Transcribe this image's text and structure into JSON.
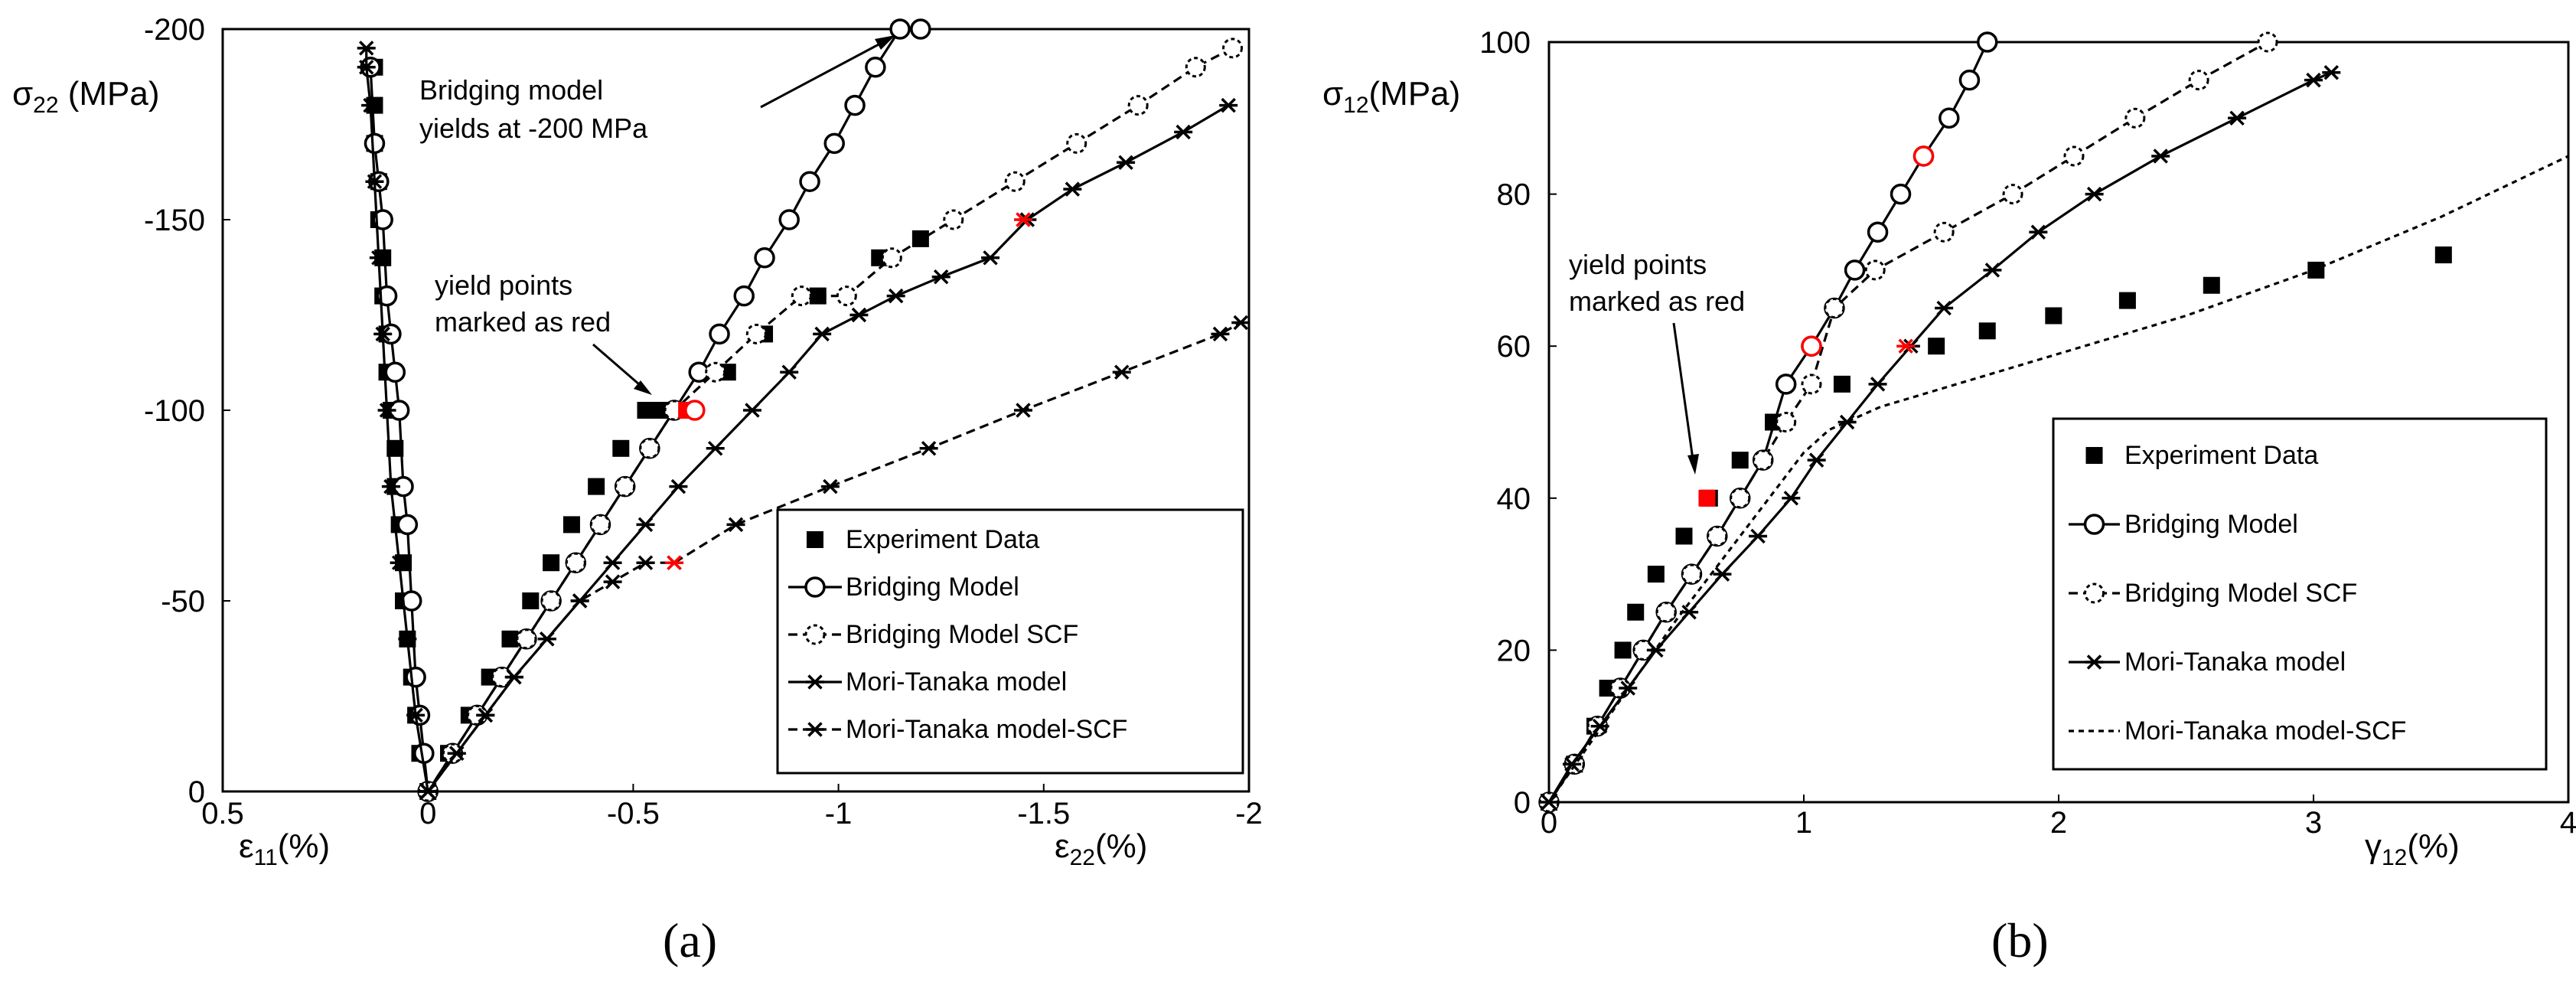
{
  "colors": {
    "ink": "#000000",
    "yield": "#ff0000",
    "background": "#ffffff"
  },
  "chart_data": [
    {
      "panel": "(a)",
      "type": "line",
      "ylabel": "σ22 (MPa)",
      "xlabel_left": "ε11(%)",
      "xlabel_right": "ε22(%)",
      "xlim": [
        0.5,
        -2
      ],
      "ylim": [
        0,
        -200
      ],
      "xticks": [
        "0.5",
        "0",
        "-0.5",
        "-1",
        "-1.5",
        "-2"
      ],
      "yticks": [
        "0",
        "-50",
        "-100",
        "-150",
        "-200"
      ],
      "annotations": [
        "Bridging model",
        "yields at -200 MPa",
        "yield points",
        "marked as red"
      ],
      "series": [
        {
          "name": "Experiment Data",
          "marker": "square",
          "line": "none",
          "x": [
            -0.05,
            -0.1,
            -0.15,
            -0.2,
            -0.25,
            -0.3,
            -0.35,
            -0.41,
            -0.47,
            -0.53,
            -0.57,
            -0.73,
            -0.82,
            -0.95,
            -1.1,
            -1.2
          ],
          "y": [
            -10,
            -20,
            -30,
            -40,
            -50,
            -60,
            -70,
            -80,
            -90,
            -100,
            -100,
            -110,
            -120,
            -130,
            -140,
            -145
          ]
        },
        {
          "name": "Experiment Data (ε11)",
          "marker": "square",
          "line": "none",
          "x": [
            0,
            0.02,
            0.03,
            0.04,
            0.05,
            0.06,
            0.06,
            0.07,
            0.08,
            0.08,
            0.09,
            0.1,
            0.1,
            0.11,
            0.11,
            0.12,
            0.12,
            0.13,
            0.13,
            0.13
          ],
          "y": [
            0,
            -10,
            -20,
            -30,
            -40,
            -50,
            -60,
            -70,
            -80,
            -90,
            -100,
            -110,
            -120,
            -130,
            -140,
            -150,
            -160,
            -170,
            -180,
            -190
          ]
        },
        {
          "name": "Bridging Model",
          "marker": "circle-open",
          "line": "solid",
          "x": [
            0,
            -0.06,
            -0.12,
            -0.18,
            -0.24,
            -0.3,
            -0.36,
            -0.42,
            -0.48,
            -0.54,
            -0.6,
            -0.66,
            -0.71,
            -0.77,
            -0.82,
            -0.88,
            -0.93,
            -0.99,
            -1.04,
            -1.09,
            -1.15,
            -1.2
          ],
          "y": [
            0,
            -10,
            -20,
            -30,
            -40,
            -50,
            -60,
            -70,
            -80,
            -90,
            -100,
            -110,
            -120,
            -130,
            -140,
            -150,
            -160,
            -170,
            -180,
            -190,
            -200,
            -200
          ]
        },
        {
          "name": "Bridging Model (ε11)",
          "marker": "circle-open",
          "line": "solid",
          "x": [
            0,
            0.01,
            0.02,
            0.03,
            0.04,
            0.05,
            0.06,
            0.07,
            0.08,
            0.09,
            0.1,
            0.11,
            0.12,
            0.13,
            0.14
          ],
          "y": [
            0,
            -10,
            -20,
            -30,
            -50,
            -70,
            -80,
            -100,
            -110,
            -120,
            -130,
            -150,
            -160,
            -170,
            -190
          ]
        },
        {
          "name": "Bridging Model SCF",
          "marker": "circle-dashed",
          "line": "dashed",
          "x": [
            0,
            -0.06,
            -0.12,
            -0.18,
            -0.24,
            -0.3,
            -0.36,
            -0.42,
            -0.48,
            -0.54,
            -0.6,
            -0.7,
            -0.8,
            -0.91,
            -1.02,
            -1.13,
            -1.28,
            -1.43,
            -1.58,
            -1.73,
            -1.87,
            -1.96
          ],
          "y": [
            0,
            -10,
            -20,
            -30,
            -40,
            -50,
            -60,
            -70,
            -80,
            -90,
            -100,
            -110,
            -120,
            -130,
            -130,
            -140,
            -150,
            -160,
            -170,
            -180,
            -190,
            -195
          ]
        },
        {
          "name": "Mori-Tanaka model",
          "marker": "star",
          "line": "solid",
          "x": [
            0,
            -0.07,
            -0.14,
            -0.21,
            -0.29,
            -0.37,
            -0.45,
            -0.53,
            -0.61,
            -0.7,
            -0.79,
            -0.88,
            -0.96,
            -1.05,
            -1.14,
            -1.25,
            -1.37,
            -1.46,
            -1.57,
            -1.7,
            -1.84,
            -1.95
          ],
          "y": [
            0,
            -10,
            -20,
            -30,
            -40,
            -50,
            -60,
            -70,
            -80,
            -90,
            -100,
            -110,
            -120,
            -125,
            -130,
            -135,
            -140,
            -150,
            -158,
            -165,
            -173,
            -180
          ]
        },
        {
          "name": "Mori-Tanaka model-SCF",
          "marker": "star",
          "line": "dashed",
          "x": [
            0,
            -0.07,
            -0.14,
            -0.21,
            -0.29,
            -0.37,
            -0.45,
            -0.53,
            -0.6,
            -0.75,
            -0.98,
            -1.22,
            -1.45,
            -1.69,
            -1.93,
            -1.98
          ],
          "y": [
            0,
            -10,
            -20,
            -30,
            -40,
            -50,
            -55,
            -60,
            -60,
            -70,
            -80,
            -90,
            -100,
            -110,
            -120,
            -123
          ]
        },
        {
          "name": "Mori-Tanaka model (ε11)",
          "marker": "star",
          "line": "solid",
          "x": [
            0,
            0.03,
            0.05,
            0.07,
            0.09,
            0.1,
            0.11,
            0.12,
            0.13,
            0.14,
            0.15,
            0.15
          ],
          "y": [
            0,
            -20,
            -40,
            -60,
            -80,
            -100,
            -120,
            -140,
            -160,
            -180,
            -190,
            -195
          ]
        }
      ],
      "yield_points": [
        {
          "x": -0.63,
          "y": -100,
          "marker": "square"
        },
        {
          "x": -0.65,
          "y": -100,
          "marker": "circle"
        },
        {
          "x": -1.45,
          "y": -150,
          "marker": "star"
        },
        {
          "x": -0.6,
          "y": -60,
          "marker": "star"
        }
      ],
      "legend": [
        "Experiment Data",
        "Bridging Model",
        "Bridging Model SCF",
        "Mori-Tanaka model",
        "Mori-Tanaka model-SCF"
      ]
    },
    {
      "panel": "(b)",
      "type": "line",
      "ylabel": "σ12(MPa)",
      "xlabel": "γ12(%)",
      "xlim": [
        0,
        4
      ],
      "ylim": [
        0,
        100
      ],
      "xticks": [
        "0",
        "1",
        "2",
        "3",
        "4"
      ],
      "yticks": [
        "0",
        "20",
        "40",
        "60",
        "80",
        "100"
      ],
      "annotations": [
        "yield points",
        "marked as red"
      ],
      "series": [
        {
          "name": "Experiment Data",
          "marker": "square",
          "line": "none",
          "x": [
            0,
            0.1,
            0.18,
            0.23,
            0.29,
            0.34,
            0.42,
            0.53,
            0.63,
            0.75,
            0.88,
            1.15,
            1.52,
            1.72,
            1.98,
            2.27,
            2.6,
            3.01,
            3.51
          ],
          "y": [
            0,
            5,
            10,
            15,
            20,
            25,
            30,
            35,
            40,
            45,
            50,
            55,
            60,
            62,
            64,
            66,
            68,
            70,
            72
          ]
        },
        {
          "name": "Bridging Model",
          "marker": "circle-open",
          "line": "solid",
          "x": [
            0,
            0.1,
            0.19,
            0.28,
            0.37,
            0.46,
            0.56,
            0.66,
            0.75,
            0.84,
            0.93,
            1.03,
            1.12,
            1.2,
            1.29,
            1.38,
            1.47,
            1.57,
            1.65,
            1.72
          ],
          "y": [
            0,
            5,
            10,
            15,
            20,
            25,
            30,
            35,
            40,
            45,
            55,
            60,
            65,
            70,
            75,
            80,
            85,
            90,
            95,
            100
          ]
        },
        {
          "name": "Bridging Model SCF",
          "marker": "circle-dashed",
          "line": "dashed",
          "x": [
            0,
            0.1,
            0.19,
            0.28,
            0.37,
            0.46,
            0.56,
            0.66,
            0.75,
            0.84,
            0.93,
            1.03,
            1.12,
            1.28,
            1.55,
            1.82,
            2.06,
            2.3,
            2.55,
            2.82
          ],
          "y": [
            0,
            5,
            10,
            15,
            20,
            25,
            30,
            35,
            40,
            45,
            50,
            55,
            65,
            70,
            75,
            80,
            85,
            90,
            95,
            100
          ]
        },
        {
          "name": "Mori-Tanaka model",
          "marker": "star",
          "line": "solid",
          "x": [
            0,
            0.09,
            0.2,
            0.31,
            0.42,
            0.55,
            0.68,
            0.82,
            0.95,
            1.05,
            1.17,
            1.29,
            1.42,
            1.55,
            1.74,
            1.92,
            2.14,
            2.4,
            2.7,
            3.0,
            3.07
          ],
          "y": [
            0,
            5,
            10,
            15,
            20,
            25,
            30,
            35,
            40,
            45,
            50,
            55,
            60,
            65,
            70,
            75,
            80,
            85,
            90,
            95,
            96
          ]
        },
        {
          "name": "Mori-Tanaka model-SCF",
          "marker": "none",
          "line": "short-dashed",
          "x": [
            0,
            0.5,
            1.0,
            1.1,
            1.3,
            1.6,
            2.0,
            2.5,
            3.0,
            3.5,
            4.0
          ],
          "y": [
            0,
            24,
            46,
            49,
            52,
            55,
            59,
            64,
            70,
            77,
            85
          ]
        }
      ],
      "yield_points": [
        {
          "x": 0.62,
          "y": 40,
          "marker": "square"
        },
        {
          "x": 1.03,
          "y": 60,
          "marker": "circle"
        },
        {
          "x": 1.47,
          "y": 85,
          "marker": "circle"
        },
        {
          "x": 1.4,
          "y": 60,
          "marker": "star"
        }
      ],
      "legend": [
        "Experiment Data",
        "Bridging Model",
        "Bridging Model  SCF",
        "Mori-Tanaka model",
        "Mori-Tanaka model-SCF"
      ]
    }
  ]
}
